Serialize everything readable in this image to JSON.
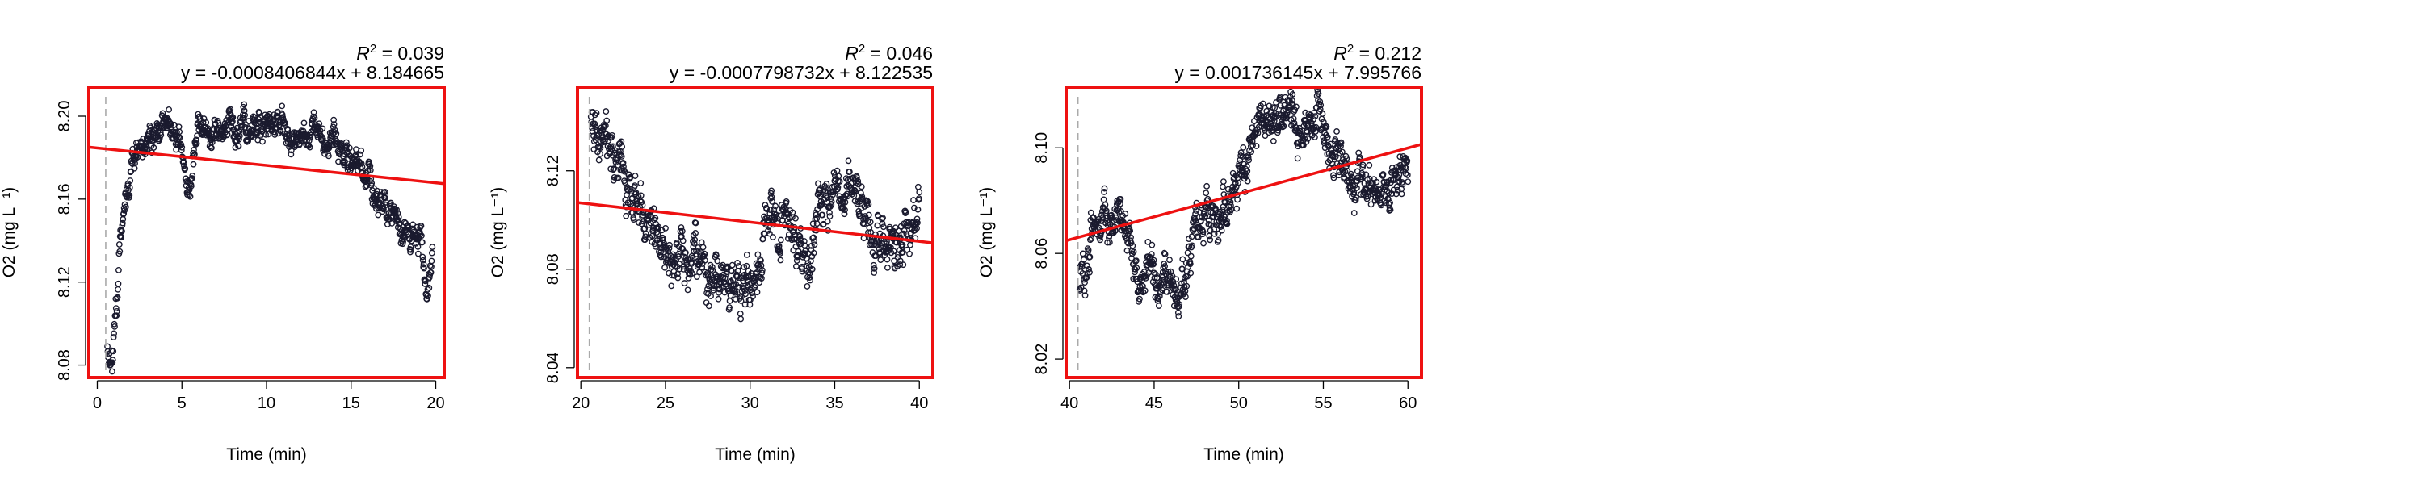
{
  "chart_data": [
    {
      "type": "scatter",
      "title": "",
      "xlabel": "Time (min)",
      "ylabel": "O2 (mg L⁻¹)",
      "xlim": [
        -0.5,
        20.5
      ],
      "ylim": [
        8.074,
        8.214
      ],
      "xticks": [
        0,
        5,
        10,
        15,
        20
      ],
      "yticks": [
        8.08,
        8.12,
        8.16,
        8.2
      ],
      "xtick_labels": [
        "0",
        "5",
        "10",
        "15",
        "20"
      ],
      "ytick_labels": [
        "8.08",
        "8.12",
        "8.16",
        "8.20"
      ],
      "fit": {
        "slope": -0.0008406844,
        "intercept": 8.184665,
        "r2": 0.039
      },
      "r2_label": "R² = 0.039",
      "equation_label": "y = -0.0008406844x + 8.184665",
      "vline_x": 0.5,
      "profile": [
        [
          0.6,
          8.09
        ],
        [
          0.9,
          8.08
        ],
        [
          1.1,
          8.1
        ],
        [
          1.4,
          8.14
        ],
        [
          1.8,
          8.17
        ],
        [
          2.3,
          8.182
        ],
        [
          3.0,
          8.19
        ],
        [
          4.0,
          8.195
        ],
        [
          4.8,
          8.188
        ],
        [
          5.4,
          8.165
        ],
        [
          6.0,
          8.196
        ],
        [
          7.0,
          8.19
        ],
        [
          8.0,
          8.196
        ],
        [
          9.0,
          8.192
        ],
        [
          10.0,
          8.197
        ],
        [
          11.0,
          8.195
        ],
        [
          12.0,
          8.186
        ],
        [
          13.0,
          8.193
        ],
        [
          14.0,
          8.188
        ],
        [
          15.0,
          8.177
        ],
        [
          16.0,
          8.168
        ],
        [
          17.0,
          8.155
        ],
        [
          18.0,
          8.145
        ],
        [
          19.0,
          8.14
        ],
        [
          19.5,
          8.12
        ],
        [
          19.8,
          8.14
        ]
      ],
      "noise": 0.008,
      "n_points": 900,
      "point_color": "#1a1a2e",
      "fit_color": "#ee1111",
      "box_color": "#ee1111"
    },
    {
      "type": "scatter",
      "title": "",
      "xlabel": "Time (min)",
      "ylabel": "O2 (mg L⁻¹)",
      "xlim": [
        19.8,
        40.8
      ],
      "ylim": [
        8.036,
        8.154
      ],
      "xticks": [
        20,
        25,
        30,
        35,
        40
      ],
      "yticks": [
        8.04,
        8.08,
        8.12
      ],
      "xtick_labels": [
        "20",
        "25",
        "30",
        "35",
        "40"
      ],
      "ytick_labels": [
        "8.04",
        "8.08",
        "8.12"
      ],
      "fit": {
        "slope": -0.0007798732,
        "intercept": 8.122535,
        "r2": 0.046
      },
      "r2_label": "R² = 0.046",
      "equation_label": "y = -0.0007798732x + 8.122535",
      "vline_x": 20.5,
      "profile": [
        [
          20.6,
          8.14
        ],
        [
          21.5,
          8.13
        ],
        [
          22.5,
          8.12
        ],
        [
          23.5,
          8.105
        ],
        [
          24.5,
          8.095
        ],
        [
          25.5,
          8.085
        ],
        [
          26.5,
          8.09
        ],
        [
          27.5,
          8.078
        ],
        [
          28.5,
          8.075
        ],
        [
          29.5,
          8.07
        ],
        [
          30.5,
          8.08
        ],
        [
          31.0,
          8.1
        ],
        [
          31.5,
          8.105
        ],
        [
          32.5,
          8.09
        ],
        [
          33.5,
          8.07
        ],
        [
          34.0,
          8.105
        ],
        [
          35.0,
          8.115
        ],
        [
          36.0,
          8.112
        ],
        [
          37.0,
          8.1
        ],
        [
          38.0,
          8.09
        ],
        [
          39.0,
          8.095
        ],
        [
          40.0,
          8.098
        ]
      ],
      "noise": 0.012,
      "n_points": 900,
      "point_color": "#1a1a2e",
      "fit_color": "#ee1111",
      "box_color": "#ee1111"
    },
    {
      "type": "scatter",
      "title": "",
      "xlabel": "Time (min)",
      "ylabel": "O2 (mg L⁻¹)",
      "xlim": [
        39.8,
        60.8
      ],
      "ylim": [
        8.013,
        8.123
      ],
      "xticks": [
        40,
        45,
        50,
        55,
        60
      ],
      "yticks": [
        8.02,
        8.06,
        8.1
      ],
      "xtick_labels": [
        "40",
        "45",
        "50",
        "55",
        "60"
      ],
      "ytick_labels": [
        "8.02",
        "8.06",
        "8.10"
      ],
      "fit": {
        "slope": 0.001736145,
        "intercept": 7.995766,
        "r2": 0.212
      },
      "r2_label": "R² = 0.212",
      "equation_label": "y = 0.001736145x + 7.995766",
      "vline_x": 40.5,
      "profile": [
        [
          40.6,
          8.05
        ],
        [
          41.5,
          8.07
        ],
        [
          42.5,
          8.075
        ],
        [
          43.5,
          8.065
        ],
        [
          44.5,
          8.05
        ],
        [
          45.5,
          8.055
        ],
        [
          46.5,
          8.04
        ],
        [
          47.5,
          8.07
        ],
        [
          48.5,
          8.075
        ],
        [
          49.5,
          8.08
        ],
        [
          50.5,
          8.095
        ],
        [
          51.5,
          8.11
        ],
        [
          52.5,
          8.112
        ],
        [
          53.5,
          8.105
        ],
        [
          54.5,
          8.112
        ],
        [
          55.5,
          8.1
        ],
        [
          56.5,
          8.09
        ],
        [
          57.5,
          8.085
        ],
        [
          58.5,
          8.08
        ],
        [
          59.5,
          8.085
        ],
        [
          60.0,
          8.088
        ]
      ],
      "noise": 0.01,
      "n_points": 900,
      "point_color": "#1a1a2e",
      "fit_color": "#ee1111",
      "box_color": "#ee1111"
    }
  ]
}
